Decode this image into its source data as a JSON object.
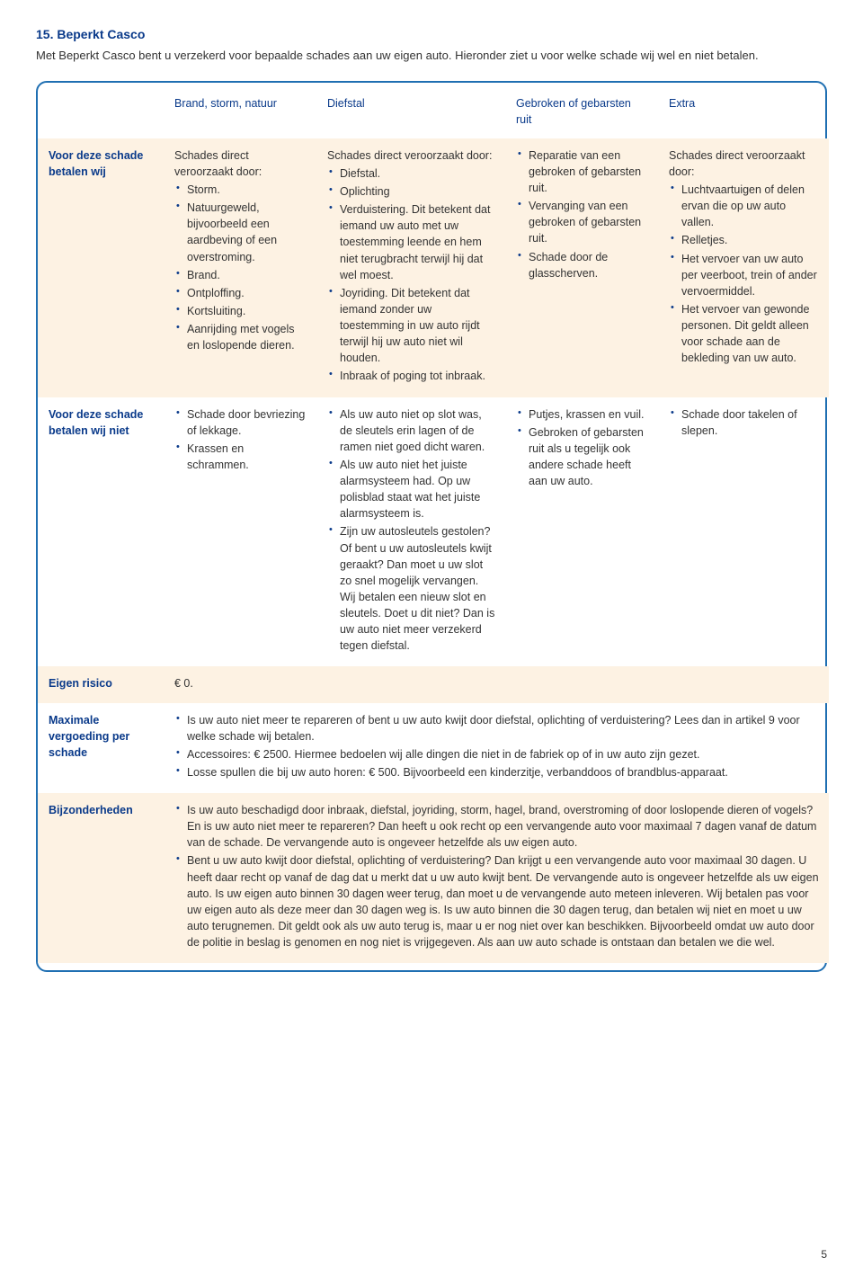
{
  "heading": "15. Beperkt Casco",
  "intro": "Met Beperkt Casco bent u verzekerd voor bepaalde schades aan uw eigen auto. Hieronder ziet u voor welke schade wij wel en niet betalen.",
  "colors": {
    "accent": "#0a3a8a",
    "border": "#1f6fb2",
    "shade": "#fdf2e3",
    "text": "#333333",
    "bg": "#ffffff"
  },
  "columns": [
    "",
    "Brand, storm, natuur",
    "Diefstal",
    "Gebroken of gebarsten ruit",
    "Extra"
  ],
  "row_pay_label": "Voor deze schade betalen wij",
  "row_nopay_label": "Voor deze schade betalen wij niet",
  "row_eigenrisico_label": "Eigen risico",
  "row_max_label": "Maximale vergoeding per schade",
  "row_bijz_label": "Bijzonderheden",
  "pay": {
    "c1_lead": "Schades direct veroorzaakt door:",
    "c1_items": [
      "Storm.",
      "Natuurgeweld, bijvoorbeeld een aardbeving of een overstroming.",
      "Brand.",
      "Ontploffing.",
      "Kortsluiting.",
      "Aanrijding met vogels en loslopende dieren."
    ],
    "c2_lead": "Schades direct veroorzaakt door:",
    "c2_items": [
      "Diefstal.",
      "Oplichting",
      "Verduistering. Dit betekent dat iemand uw auto met uw toestemming leende en hem niet terugbracht terwijl hij dat wel moest.",
      "Joyriding. Dit betekent dat iemand zonder uw toestemming in uw auto rijdt terwijl hij uw auto niet wil houden.",
      "Inbraak of poging tot inbraak."
    ],
    "c3_items": [
      "Reparatie van een gebroken of gebarsten ruit.",
      "Vervanging van een gebroken of gebarsten ruit.",
      "Schade door de glasscherven."
    ],
    "c4_lead": "Schades direct veroorzaakt door:",
    "c4_items": [
      "Luchtvaartuigen of delen ervan die op uw auto vallen.",
      "Relletjes.",
      "Het vervoer van uw auto per veerboot, trein of ander vervoermiddel.",
      "Het vervoer van gewonde personen. Dit geldt alleen voor schade aan de bekleding van uw auto."
    ]
  },
  "nopay": {
    "c1_items": [
      "Schade door bevriezing of lekkage.",
      "Krassen en schrammen."
    ],
    "c2_items": [
      "Als uw auto niet op slot was, de sleutels erin lagen of de ramen niet goed dicht waren.",
      "Als uw auto niet het juiste alarmsysteem had. Op uw polisblad staat wat het juiste alarmsysteem is.",
      "Zijn uw autosleutels gestolen? Of bent u uw autosleutels kwijt geraakt? Dan moet u uw slot zo snel mogelijk vervangen. Wij betalen een nieuw slot en sleutels. Doet u dit niet? Dan is uw auto niet meer verzekerd tegen diefstal."
    ],
    "c3_items": [
      "Putjes, krassen en vuil.",
      "Gebroken of gebarsten ruit als u tegelijk ook andere schade heeft aan uw auto."
    ],
    "c4_items": [
      "Schade door takelen of slepen."
    ]
  },
  "eigen_risico": "€ 0.",
  "max_items": [
    "Is uw auto niet meer te repareren of bent u uw auto kwijt door diefstal, oplichting of verduistering? Lees dan in artikel 9 voor welke schade wij betalen.",
    "Accessoires: € 2500. Hiermee bedoelen wij alle dingen die niet in de fabriek op of in uw auto zijn gezet.",
    "Losse spullen die bij uw auto horen: € 500. Bijvoorbeeld een kinderzitje, verbanddoos of brandblus-apparaat."
  ],
  "bijz_items": [
    "Is uw auto beschadigd door inbraak, diefstal, joyriding, storm, hagel, brand, overstroming of door loslopende dieren of vogels? En is uw auto niet meer te repareren? Dan heeft u ook recht op een vervangende auto voor maximaal 7 dagen vanaf de datum van de schade. De vervangende auto is ongeveer hetzelfde als uw eigen auto.",
    "Bent u uw auto kwijt door diefstal, oplichting of verduistering? Dan krijgt u een vervangende auto voor maximaal 30 dagen. U heeft daar recht op vanaf de dag dat u merkt dat u uw auto kwijt bent. De vervangende auto is ongeveer hetzelfde als uw eigen auto. Is uw eigen auto binnen 30 dagen weer terug, dan moet u de vervangende auto meteen inleveren. Wij betalen pas voor uw eigen auto als deze meer dan 30 dagen weg is. Is uw auto binnen die 30 dagen terug, dan betalen wij niet en moet u uw auto terugnemen. Dit geldt ook als uw auto terug is, maar u er nog niet over kan beschikken. Bijvoorbeeld omdat uw auto door de politie in beslag is genomen en nog niet is vrijgegeven. Als aan uw auto schade is ontstaan dan betalen we die wel."
  ],
  "page_number": "5"
}
